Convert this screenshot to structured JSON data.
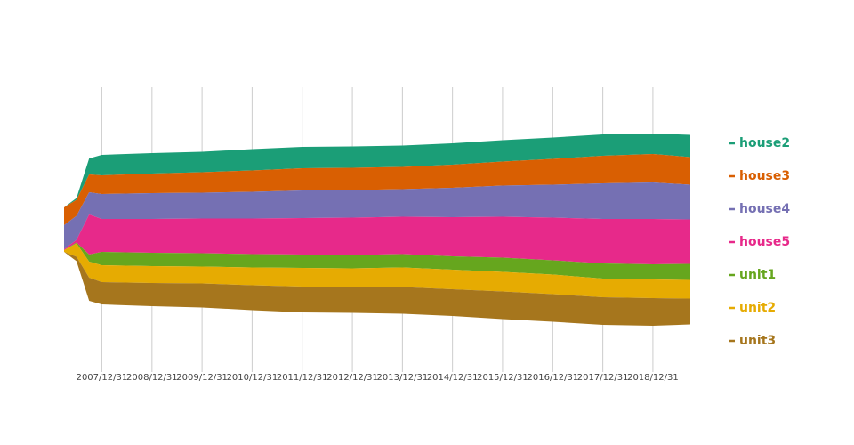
{
  "chart_data": {
    "type": "streamgraph",
    "x": [
      "2007/03/31",
      "2007/06/30",
      "2007/09/30",
      "2007/12/31",
      "2008/12/31",
      "2009/12/31",
      "2010/12/31",
      "2011/12/31",
      "2012/12/31",
      "2013/12/31",
      "2014/12/31",
      "2015/12/31",
      "2016/12/31",
      "2017/12/31",
      "2018/12/31",
      "2019/09/30"
    ],
    "xlim": [
      "2007/03/31",
      "2019/09/30"
    ],
    "xticks": [
      "2007/12/31",
      "2008/12/31",
      "2009/12/31",
      "2010/12/31",
      "2011/12/31",
      "2012/12/31",
      "2013/12/31",
      "2014/12/31",
      "2015/12/31",
      "2016/12/31",
      "2017/12/31",
      "2018/12/31"
    ],
    "ylim": [
      -160,
      160
    ],
    "grid": true,
    "legend": "right",
    "series": [
      {
        "name": "house2",
        "color": "#1b9e77",
        "values": [
          0,
          2,
          18,
          23,
          23,
          23,
          24,
          24,
          24,
          24,
          24,
          24,
          24,
          24,
          23,
          25
        ]
      },
      {
        "name": "house3",
        "color": "#d95f02",
        "values": [
          20,
          18,
          20,
          21,
          22,
          23,
          24,
          25,
          25,
          25,
          26,
          27,
          29,
          31,
          32,
          31
        ]
      },
      {
        "name": "house4",
        "color": "#7570b3",
        "values": [
          27,
          27,
          25,
          28,
          29,
          29,
          30,
          31,
          31,
          31,
          33,
          35,
          37,
          40,
          41,
          39
        ]
      },
      {
        "name": "house5",
        "color": "#e7298a",
        "values": [
          1,
          3,
          45,
          37,
          38,
          39,
          40,
          41,
          42,
          42,
          44,
          46,
          48,
          50,
          51,
          50
        ]
      },
      {
        "name": "unit1",
        "color": "#66a61e",
        "values": [
          0,
          1,
          8,
          15,
          15,
          15,
          15,
          15,
          15,
          15,
          15,
          16,
          16,
          17,
          17,
          18
        ]
      },
      {
        "name": "unit2",
        "color": "#e6ab02",
        "values": [
          2,
          15,
          18,
          19,
          19,
          19,
          20,
          21,
          21,
          22,
          22,
          22,
          22,
          21,
          21,
          21
        ]
      },
      {
        "name": "unit3",
        "color": "#a6761d",
        "values": [
          0,
          5,
          26,
          25,
          26,
          27,
          28,
          29,
          29,
          30,
          30,
          31,
          31,
          31,
          31,
          29
        ]
      }
    ]
  }
}
